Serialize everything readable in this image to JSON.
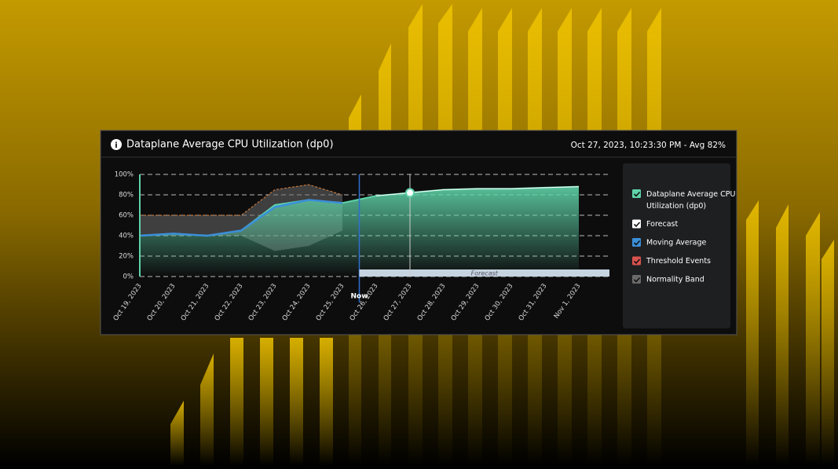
{
  "header": {
    "title": "Dataplane Average CPU Utilization (dp0)",
    "status": "Oct 27, 2023, 10:23:30 PM - Avg 82%"
  },
  "chart_data": {
    "type": "line",
    "categories": [
      "Oct 19, 2023",
      "Oct 20, 2023",
      "Oct 21, 2023",
      "Oct 22, 2023",
      "Oct 23, 2023",
      "Oct 24, 2023",
      "Oct 25, 2023",
      "Oct 26, 2023",
      "Oct 27, 2023",
      "Oct 28, 2023",
      "Oct 29, 2023",
      "Oct 30, 2023",
      "Oct 31, 2023",
      "Nov 1, 2023"
    ],
    "ylim": [
      0,
      100
    ],
    "yticks": [
      {
        "value": 0,
        "label": "0%"
      },
      {
        "value": 20,
        "label": "20%"
      },
      {
        "value": 40,
        "label": "40%"
      },
      {
        "value": 60,
        "label": "60%"
      },
      {
        "value": 80,
        "label": "80%"
      },
      {
        "value": 100,
        "label": "100%"
      }
    ],
    "grid": true,
    "now_label": "Now",
    "forecast_label": "Forecast",
    "highlight_category": "Oct 27, 2023",
    "series": [
      {
        "name": "Dataplane Average CPU Utilization (dp0)",
        "color": "#5fd3a8",
        "values": [
          40,
          42,
          40,
          45,
          70,
          75,
          72,
          79,
          82,
          85,
          86,
          86,
          87,
          88
        ]
      },
      {
        "name": "Forecast",
        "color": "#ffffff",
        "values": [
          null,
          null,
          null,
          null,
          null,
          null,
          null,
          79,
          82,
          85,
          86,
          86,
          87,
          88
        ]
      },
      {
        "name": "Moving Average",
        "color": "#3b8fd9",
        "values": [
          40,
          42,
          40,
          45,
          68,
          75,
          72,
          null,
          null,
          null,
          null,
          null,
          null,
          null
        ]
      },
      {
        "name": "Threshold Events",
        "color": "#d9534f",
        "values": [
          null,
          null,
          null,
          null,
          null,
          null,
          null,
          null,
          null,
          null,
          null,
          null,
          null,
          null
        ]
      },
      {
        "name": "Normality Band",
        "color": "#6a6a6a",
        "line_color": "#e0843a",
        "lower": [
          40,
          40,
          40,
          40,
          25,
          30,
          45,
          null,
          null,
          null,
          null,
          null,
          null,
          null
        ],
        "upper": [
          60,
          60,
          60,
          60,
          85,
          90,
          80,
          null,
          null,
          null,
          null,
          null,
          null,
          null
        ]
      }
    ]
  }
}
